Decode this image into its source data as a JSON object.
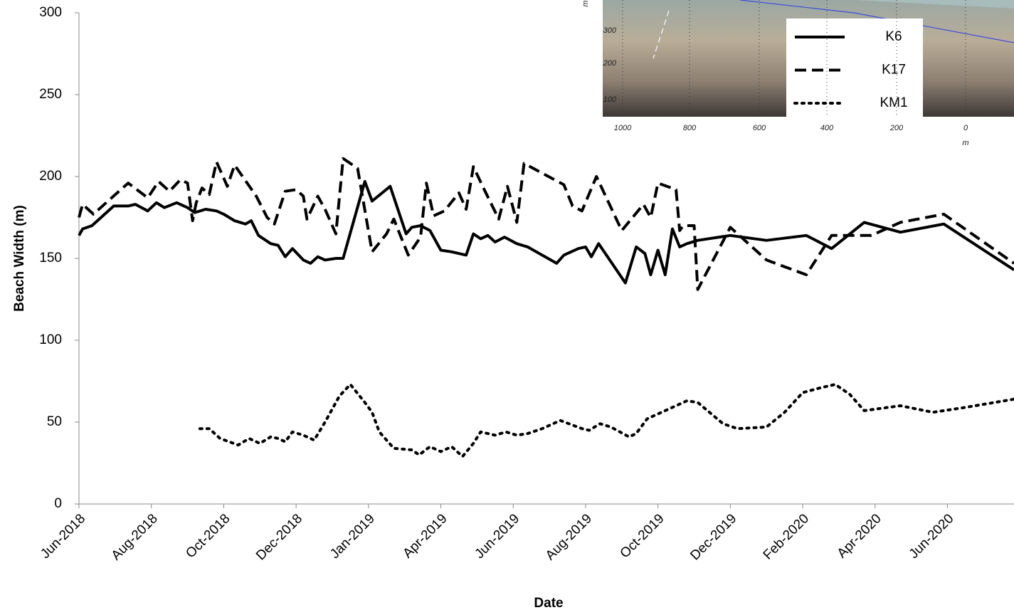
{
  "chart_data": {
    "type": "line",
    "x_label": "Date",
    "y_label": "Beach Width (m)",
    "xlim": [
      0,
      12.92
    ],
    "ylim": [
      0,
      300
    ],
    "yticks": [
      0,
      50,
      100,
      150,
      200,
      250,
      300
    ],
    "xticks": [
      {
        "value": 0,
        "label": "Jun-2018"
      },
      {
        "value": 1,
        "label": "Aug-2018"
      },
      {
        "value": 2,
        "label": "Oct-2018"
      },
      {
        "value": 3,
        "label": "Dec-2018"
      },
      {
        "value": 4,
        "label": "Jan-2019"
      },
      {
        "value": 5,
        "label": "Apr-2019"
      },
      {
        "value": 6,
        "label": "Jun-2019"
      },
      {
        "value": 7,
        "label": "Aug-2019"
      },
      {
        "value": 8,
        "label": "Oct-2019"
      },
      {
        "value": 9,
        "label": "Dec-2019"
      },
      {
        "value": 10,
        "label": "Feb-2020"
      },
      {
        "value": 11,
        "label": "Apr-2020"
      },
      {
        "value": 12,
        "label": "Jun-2020"
      }
    ],
    "grid": false,
    "series": [
      {
        "name": "K6",
        "color": "#000000",
        "style": "solid",
        "x": [
          0,
          0.05,
          0.18,
          0.48,
          0.68,
          0.78,
          0.95,
          1.07,
          1.18,
          1.35,
          1.5,
          1.6,
          1.75,
          1.9,
          2.0,
          2.15,
          2.3,
          2.38,
          2.48,
          2.65,
          2.75,
          2.85,
          2.95,
          3.1,
          3.2,
          3.3,
          3.4,
          3.55,
          3.65,
          3.95,
          4.05,
          4.3,
          4.52,
          4.6,
          4.72,
          4.85,
          5.0,
          5.15,
          5.35,
          5.45,
          5.55,
          5.65,
          5.75,
          5.88,
          6.05,
          6.2,
          6.6,
          6.7,
          6.9,
          7.0,
          7.08,
          7.18,
          7.55,
          7.7,
          7.82,
          7.9,
          8.0,
          8.1,
          8.2,
          8.3,
          8.4,
          8.55,
          9.0,
          9.5,
          10.05,
          10.4,
          10.85,
          11.35,
          11.95,
          12.92
        ],
        "values": [
          164,
          168,
          170,
          182,
          182,
          183,
          179,
          184,
          181,
          184,
          181,
          178,
          180,
          179,
          177,
          173,
          171,
          173,
          164,
          159,
          158,
          151,
          156,
          149,
          147,
          151,
          149,
          150,
          150,
          197,
          185,
          194,
          165,
          169,
          170,
          167,
          155,
          154,
          152,
          165,
          162,
          164,
          160,
          163,
          159,
          157,
          147,
          152,
          156,
          157,
          151,
          159,
          135,
          157,
          153,
          140,
          155,
          140,
          168,
          157,
          159,
          161,
          164,
          161,
          164,
          156,
          172,
          166,
          171,
          143
        ]
      },
      {
        "name": "K17",
        "color": "#000000",
        "style": "dashed",
        "x": [
          0,
          0.05,
          0.2,
          0.4,
          0.68,
          0.95,
          1.1,
          1.25,
          1.4,
          1.5,
          1.57,
          1.62,
          1.7,
          1.8,
          1.9,
          2.05,
          2.15,
          2.45,
          2.6,
          2.7,
          2.85,
          3.0,
          3.1,
          3.15,
          3.3,
          3.4,
          3.55,
          3.65,
          3.85,
          4.05,
          4.25,
          4.35,
          4.55,
          4.72,
          4.8,
          4.9,
          5.05,
          5.25,
          5.35,
          5.45,
          5.6,
          5.8,
          5.92,
          6.05,
          6.15,
          6.7,
          6.82,
          6.95,
          7.15,
          7.5,
          7.8,
          7.9,
          8.0,
          8.25,
          8.3,
          8.35,
          8.5,
          8.55,
          9.0,
          9.5,
          10.05,
          10.4,
          10.95,
          11.35,
          11.95,
          12.92
        ],
        "values": [
          175,
          183,
          177,
          185,
          196,
          187,
          197,
          191,
          198,
          196,
          173,
          184,
          193,
          189,
          209,
          194,
          207,
          188,
          175,
          171,
          191,
          192,
          188,
          174,
          188,
          180,
          165,
          211,
          205,
          154,
          165,
          174,
          152,
          163,
          196,
          176,
          179,
          190,
          180,
          206,
          192,
          174,
          194,
          172,
          208,
          195,
          182,
          179,
          200,
          167,
          183,
          175,
          196,
          192,
          167,
          170,
          170,
          131,
          169,
          149,
          140,
          164,
          164,
          172,
          177,
          147
        ]
      },
      {
        "name": "KM1",
        "color": "#000000",
        "style": "dotted",
        "x": [
          1.67,
          1.8,
          1.95,
          2.2,
          2.35,
          2.5,
          2.65,
          2.75,
          2.85,
          2.95,
          3.1,
          3.25,
          3.4,
          3.6,
          3.75,
          3.95,
          4.05,
          4.15,
          4.35,
          4.6,
          4.7,
          4.85,
          5.0,
          5.15,
          5.3,
          5.45,
          5.55,
          5.75,
          5.9,
          6.05,
          6.2,
          6.4,
          6.65,
          6.95,
          7.05,
          7.2,
          7.35,
          7.6,
          7.7,
          7.85,
          8.1,
          8.4,
          8.55,
          8.9,
          9.1,
          9.5,
          9.75,
          10.0,
          10.25,
          10.45,
          10.65,
          10.85,
          11.35,
          11.8,
          12.25,
          12.92
        ],
        "values": [
          46,
          46,
          40,
          36,
          40,
          37,
          41,
          40,
          38,
          44,
          42,
          39,
          50,
          66,
          73,
          62,
          56,
          44,
          34,
          33,
          30,
          35,
          32,
          35,
          29,
          37,
          44,
          42,
          44,
          42,
          43,
          46,
          51,
          46,
          45,
          49,
          47,
          41,
          43,
          52,
          57,
          63,
          62,
          49,
          46,
          47,
          56,
          68,
          71,
          73,
          67,
          57,
          60,
          56,
          59,
          64
        ]
      }
    ]
  },
  "inset": {
    "x_labels": [
      1000,
      800,
      600,
      400,
      200,
      0
    ],
    "y_labels": [
      300,
      200,
      100
    ],
    "x_unit": "m",
    "y_unit": "m"
  }
}
